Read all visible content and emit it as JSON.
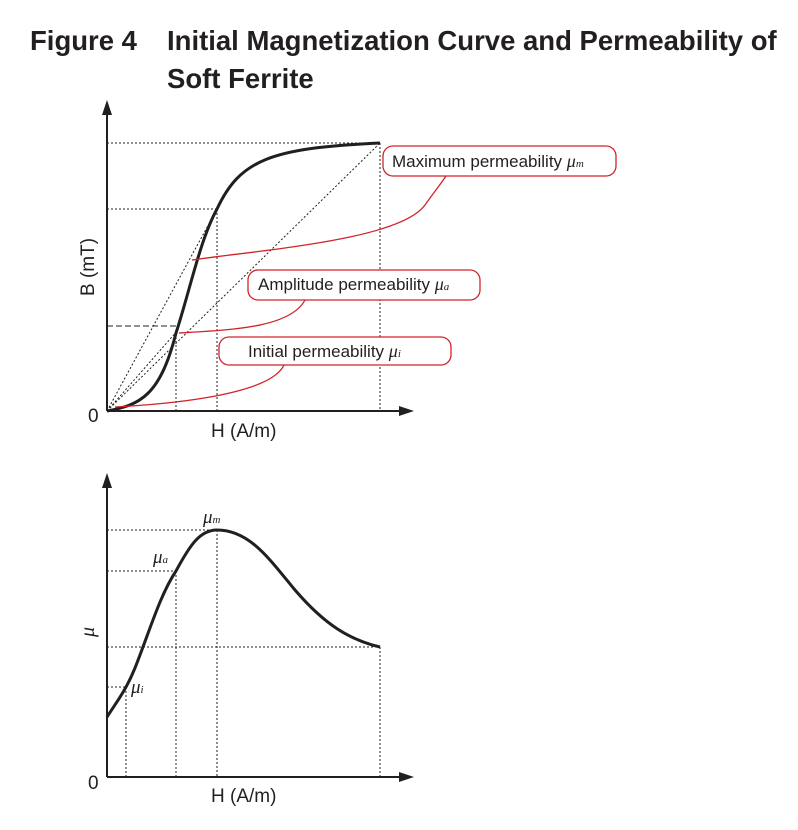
{
  "figure": {
    "number": "Figure 4",
    "title": "Initial Magnetization Curve and Permeability of Soft Ferrite"
  },
  "top_chart": {
    "y_label": "B (mT)",
    "x_label": "H (A/m)",
    "origin_label": "0",
    "callouts": {
      "maximum": {
        "text": "Maximum permeability ",
        "symbol": "μ",
        "subscript": "m"
      },
      "amplitude": {
        "text": "Amplitude permeability ",
        "symbol": "μ",
        "subscript": "a"
      },
      "initial": {
        "text": "Initial permeability ",
        "symbol": "μ",
        "subscript": "i"
      }
    }
  },
  "bottom_chart": {
    "y_label": "μ",
    "x_label": "H (A/m)",
    "origin_label": "0",
    "markers": {
      "max": {
        "symbol": "μ",
        "subscript": "m"
      },
      "amplitude": {
        "symbol": "μ",
        "subscript": "a"
      },
      "initial": {
        "symbol": "μ",
        "subscript": "i"
      }
    }
  },
  "colors": {
    "ink": "#231f20",
    "callout": "#d2232a"
  }
}
